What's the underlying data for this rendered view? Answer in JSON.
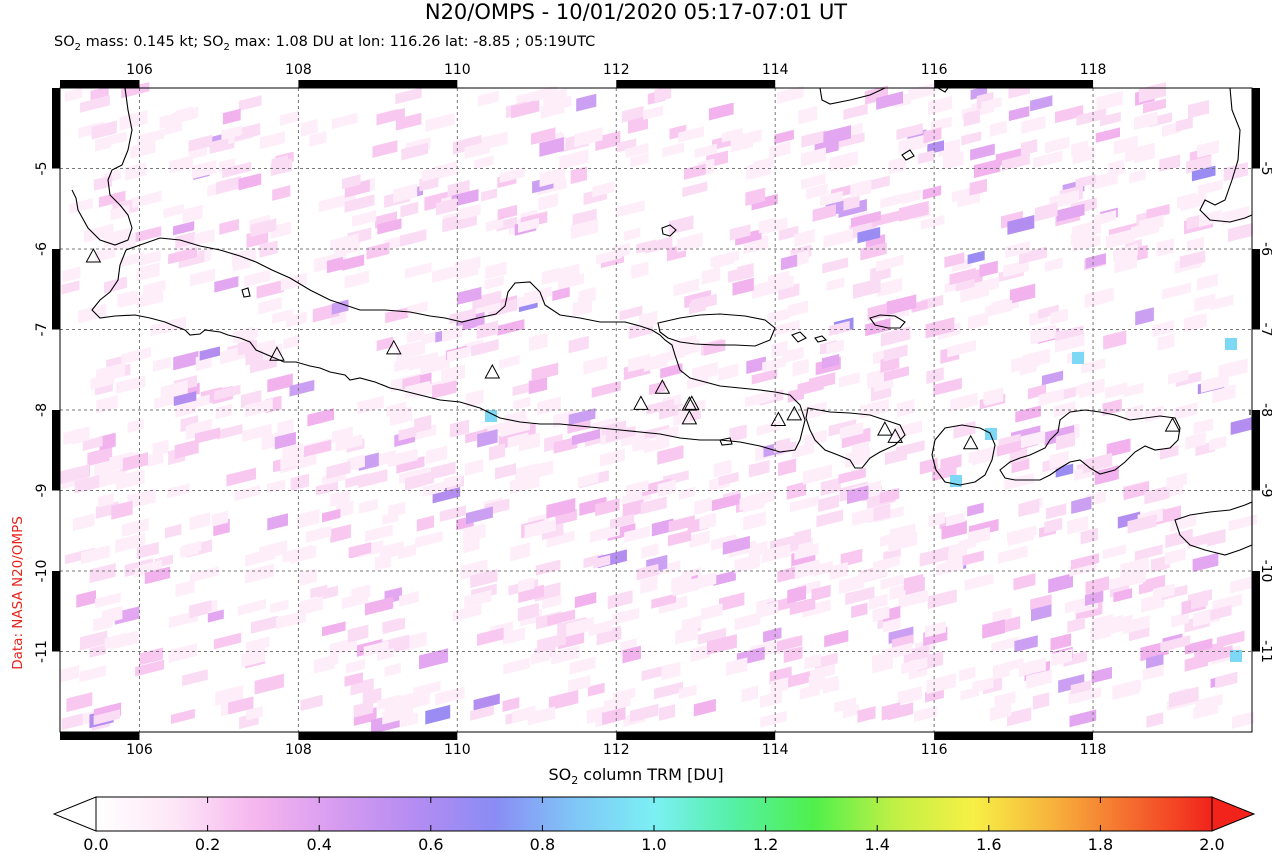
{
  "title": "N20/OMPS - 10/01/2020 05:17-07:01 UT",
  "subtitle": {
    "mass_label": "SO",
    "mass_sub": "2",
    "mass_text": " mass: 0.145 kt; SO",
    "max_sub": "2",
    "max_text": " max: 1.08 DU at lon: 116.26 lat: -8.85 ; 05:19UTC"
  },
  "credit": "Data: NASA N20/OMPS",
  "colorbar": {
    "label_pre": "SO",
    "label_sub": "2",
    "label_post": " column TRM [DU]",
    "ticks": [
      "0.0",
      "0.2",
      "0.4",
      "0.6",
      "0.8",
      "1.0",
      "1.2",
      "1.4",
      "1.6",
      "1.8",
      "2.0"
    ],
    "min": 0.0,
    "max": 2.0,
    "colors": [
      "#ffffff",
      "#fde6f7",
      "#f6b6ee",
      "#d79cf0",
      "#b48cf2",
      "#8a8cf4",
      "#7fc6f7",
      "#7cf0f4",
      "#55f0a6",
      "#4ff04c",
      "#bff045",
      "#f7f045",
      "#f7b23c",
      "#f56a2e",
      "#f2231b"
    ]
  },
  "map": {
    "lon_ticks": [
      "106",
      "108",
      "110",
      "112",
      "114",
      "116",
      "118"
    ],
    "lat_ticks": [
      "-5",
      "-6",
      "-7",
      "-8",
      "-9",
      "-10",
      "-11"
    ],
    "lon_range": [
      105.0,
      120.0
    ],
    "lat_range": [
      -12.0,
      -4.0
    ],
    "grid": true,
    "volcano_count": 15
  }
}
